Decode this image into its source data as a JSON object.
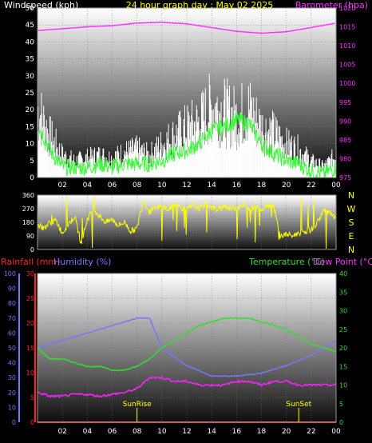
{
  "header": {
    "windspeed_label": "Windspeed (kph)",
    "graph_title": "24 hour graph day : May 02 2025",
    "barometer_label": "Barometer (hpa)"
  },
  "panel3_header": {
    "rainfall_label": "Rainfall (mm)",
    "humidity_label": "Humidity (%)",
    "temperature_label": "Temperature (°C)",
    "dewpoint_label": "Dew Point (°C)"
  },
  "x_ticks": [
    "02",
    "04",
    "06",
    "08",
    "10",
    "12",
    "14",
    "16",
    "18",
    "20",
    "22",
    "00"
  ],
  "compass_letters": [
    "N",
    "W",
    "S",
    "E",
    "N"
  ],
  "sun": {
    "sunrise_label": "SunRise",
    "sunrise_hour": 8.0,
    "sunset_label": "SunSet",
    "sunset_hour": 21.0
  },
  "colors": {
    "windspeed": "#ffffff",
    "wind_avg": "#33ff33",
    "barometer": "#ff33ff",
    "direction": "#ffff00",
    "rainfall": "#ff2222",
    "humidity": "#7777ff",
    "temperature": "#33dd33",
    "dewpoint": "#ff22ff",
    "title": "#ffff00"
  },
  "chart_data": [
    {
      "type": "line",
      "xlabel": "",
      "x_range_hours": [
        0,
        24
      ],
      "left_axis": {
        "label": "Windspeed (kph)",
        "ylim": [
          0,
          50
        ],
        "ticks": [
          0,
          5,
          10,
          15,
          20,
          25,
          30,
          35,
          40,
          45,
          50
        ]
      },
      "right_axis": {
        "label": "Barometer (hpa)",
        "ylim": [
          975,
          1020
        ],
        "ticks": [
          975,
          980,
          985,
          990,
          995,
          1000,
          1005,
          1010,
          1015,
          1020
        ]
      },
      "series": [
        {
          "name": "Windspeed (kph)",
          "axis": "left",
          "x": [
            0,
            1,
            2,
            3,
            4,
            5,
            6,
            7,
            8,
            9,
            10,
            11,
            12,
            13,
            14,
            15,
            16,
            17,
            18,
            19,
            20,
            21,
            22,
            23,
            24
          ],
          "values": [
            25,
            15,
            8,
            6,
            7,
            8,
            7,
            9,
            10,
            8,
            12,
            15,
            18,
            20,
            26,
            24,
            22,
            25,
            18,
            16,
            12,
            10,
            6,
            4,
            8
          ]
        },
        {
          "name": "",
          "axis": "left",
          "x": [
            0,
            1,
            2,
            3,
            4,
            5,
            6,
            7,
            8,
            9,
            10,
            11,
            12,
            13,
            14,
            15,
            16,
            17,
            18,
            19,
            20,
            21,
            22,
            23,
            24
          ],
          "values": [
            16,
            8,
            3,
            3,
            3,
            4,
            3,
            4,
            4,
            4,
            5,
            7,
            8,
            10,
            14,
            15,
            17,
            16,
            10,
            7,
            5,
            4,
            2,
            1,
            3
          ]
        },
        {
          "name": "Barometer (hpa)",
          "axis": "right",
          "x": [
            0,
            2,
            4,
            6,
            8,
            10,
            12,
            14,
            16,
            18,
            20,
            22,
            24
          ],
          "values": [
            1014,
            1014.5,
            1015,
            1015.3,
            1016,
            1016.2,
            1015.8,
            1014.8,
            1013.8,
            1013.3,
            1013.7,
            1014.8,
            1016
          ]
        }
      ]
    },
    {
      "type": "line",
      "x_range_hours": [
        0,
        24
      ],
      "left_axis": {
        "ylim": [
          0,
          360
        ],
        "ticks": [
          0,
          90,
          180,
          270,
          360
        ]
      },
      "series": [
        {
          "name": "",
          "axis": "left",
          "x": [
            0,
            0.5,
            1,
            1.5,
            2,
            2.5,
            3,
            3.5,
            4,
            4.5,
            5,
            5.5,
            6,
            6.5,
            7,
            7.5,
            8,
            8.5,
            9,
            9.5,
            10,
            10.5,
            11,
            11.5,
            12,
            12.5,
            13,
            13.5,
            14,
            14.5,
            15,
            15.5,
            16,
            16.5,
            17,
            17.5,
            18,
            18.5,
            19,
            19.5,
            20,
            20.5,
            21,
            21.5,
            22,
            22.5,
            23,
            23.5,
            24
          ],
          "values": [
            160,
            140,
            180,
            190,
            110,
            170,
            220,
            40,
            200,
            270,
            220,
            180,
            200,
            160,
            180,
            120,
            140,
            330,
            250,
            270,
            290,
            260,
            300,
            280,
            260,
            290,
            270,
            300,
            280,
            260,
            290,
            270,
            280,
            300,
            260,
            290,
            270,
            300,
            280,
            90,
            100,
            90,
            110,
            120,
            130,
            180,
            260,
            240,
            200
          ]
        }
      ]
    },
    {
      "type": "line",
      "x_range_hours": [
        0,
        24
      ],
      "left_axis": {
        "label": "Humidity (%)",
        "ylim": [
          0,
          100
        ],
        "ticks": [
          0,
          10,
          20,
          30,
          40,
          50,
          60,
          70,
          80,
          90,
          100
        ]
      },
      "rain_axis": {
        "label": "Rainfall (mm)",
        "ylim": [
          0,
          30
        ],
        "ticks": [
          0,
          5,
          10,
          15,
          20,
          25,
          30
        ]
      },
      "right_axis": {
        "label": "Temperature (°C)",
        "ylim": [
          0,
          40
        ],
        "ticks": [
          0,
          5,
          10,
          15,
          20,
          25,
          30,
          35,
          40
        ]
      },
      "series": [
        {
          "name": "Humidity (%)",
          "axis": "left",
          "x": [
            0,
            2,
            4,
            6,
            8,
            9,
            10,
            12,
            14,
            16,
            18,
            20,
            22,
            23,
            24
          ],
          "values": [
            50,
            55,
            60,
            65,
            70,
            70,
            50,
            38,
            31,
            31,
            33,
            38,
            45,
            50,
            55
          ]
        },
        {
          "name": "Temperature (°C)",
          "axis": "right",
          "x": [
            0,
            1,
            2,
            3,
            4,
            5,
            6,
            7,
            8,
            9,
            10,
            11,
            12,
            13,
            14,
            15,
            16,
            17,
            18,
            19,
            20,
            21,
            22,
            23,
            24
          ],
          "values": [
            20,
            17,
            17,
            16,
            15,
            15,
            14,
            14,
            15,
            17,
            20,
            22,
            24,
            26,
            27,
            28,
            28,
            28,
            27,
            26,
            25,
            23,
            21,
            20,
            19
          ]
        },
        {
          "name": "Dew Point (°C)",
          "axis": "right",
          "x": [
            0,
            1,
            2,
            3,
            4,
            5,
            6,
            7,
            8,
            9,
            10,
            11,
            12,
            13,
            14,
            15,
            16,
            17,
            18,
            19,
            20,
            21,
            22,
            23,
            24
          ],
          "values": [
            8,
            7,
            7,
            7.5,
            7.5,
            7,
            7.5,
            8,
            9,
            12,
            12,
            11,
            11,
            10,
            10,
            10,
            11,
            11,
            10,
            11,
            11,
            10,
            10,
            10,
            10
          ]
        },
        {
          "name": "Rainfall (mm)",
          "axis": "rain",
          "x": [
            0,
            24
          ],
          "values": [
            0,
            0
          ]
        }
      ]
    }
  ]
}
